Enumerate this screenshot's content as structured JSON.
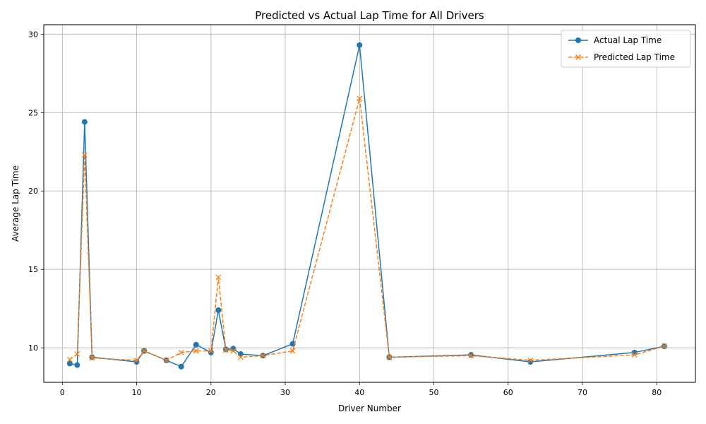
{
  "chart_data": {
    "type": "line",
    "title": "Predicted vs Actual Lap Time for All Drivers",
    "xlabel": "Driver Number",
    "ylabel": "Average Lap Time",
    "xlim": [
      -2.5,
      85.2
    ],
    "ylim": [
      7.8,
      30.6
    ],
    "x_ticks": [
      0,
      10,
      20,
      30,
      40,
      50,
      60,
      70,
      80
    ],
    "y_ticks": [
      10,
      15,
      20,
      25,
      30
    ],
    "x_tick_labels": [
      "0",
      "10",
      "20",
      "30",
      "40",
      "50",
      "60",
      "70",
      "80"
    ],
    "y_tick_labels": [
      "10",
      "15",
      "20",
      "25",
      "30"
    ],
    "grid": true,
    "legend_position": "top-right",
    "x": [
      1,
      2,
      3,
      4,
      10,
      11,
      14,
      16,
      18,
      20,
      21,
      22,
      23,
      24,
      27,
      31,
      40,
      44,
      55,
      63,
      77,
      81
    ],
    "series": [
      {
        "name": "Actual Lap Time",
        "color": "#1f77b4",
        "marker": "circle",
        "line_style": "solid",
        "values": [
          9.0,
          8.9,
          24.4,
          9.4,
          9.1,
          9.8,
          9.2,
          8.8,
          10.2,
          9.7,
          12.4,
          9.9,
          9.95,
          9.6,
          9.5,
          10.25,
          29.3,
          9.4,
          9.55,
          9.1,
          9.7,
          10.1
        ]
      },
      {
        "name": "Predicted Lap Time",
        "color": "#ff7f0e",
        "marker": "x",
        "line_style": "dashed",
        "values": [
          9.25,
          9.6,
          22.3,
          9.35,
          9.2,
          9.8,
          9.2,
          9.7,
          9.8,
          9.8,
          14.5,
          9.85,
          9.8,
          9.4,
          9.5,
          9.8,
          25.9,
          9.4,
          9.5,
          9.2,
          9.55,
          10.1
        ]
      }
    ]
  }
}
